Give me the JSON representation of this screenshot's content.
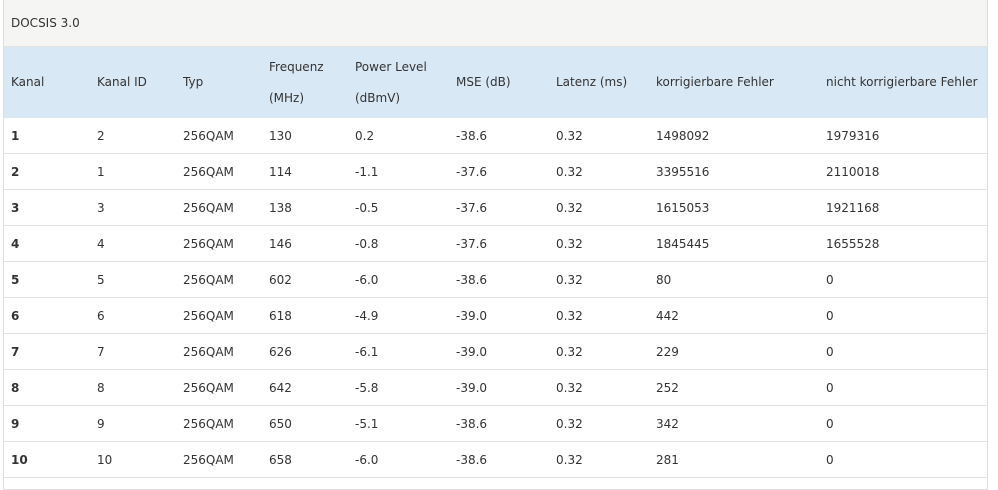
{
  "header": {
    "title": "DOCSIS 3.0"
  },
  "table": {
    "columns": [
      "Kanal",
      "Kanal ID",
      "Typ",
      "Frequenz (MHz)",
      "Power Level (dBmV)",
      "MSE (dB)",
      "Latenz (ms)",
      "korrigierbare Fehler",
      "nicht korrigierbare Fehler"
    ],
    "rows": [
      [
        "1",
        "2",
        "256QAM",
        "130",
        "0.2",
        "-38.6",
        "0.32",
        "1498092",
        "1979316"
      ],
      [
        "2",
        "1",
        "256QAM",
        "114",
        "-1.1",
        "-37.6",
        "0.32",
        "3395516",
        "2110018"
      ],
      [
        "3",
        "3",
        "256QAM",
        "138",
        "-0.5",
        "-37.6",
        "0.32",
        "1615053",
        "1921168"
      ],
      [
        "4",
        "4",
        "256QAM",
        "146",
        "-0.8",
        "-37.6",
        "0.32",
        "1845445",
        "1655528"
      ],
      [
        "5",
        "5",
        "256QAM",
        "602",
        "-6.0",
        "-38.6",
        "0.32",
        "80",
        "0"
      ],
      [
        "6",
        "6",
        "256QAM",
        "618",
        "-4.9",
        "-39.0",
        "0.32",
        "442",
        "0"
      ],
      [
        "7",
        "7",
        "256QAM",
        "626",
        "-6.1",
        "-39.0",
        "0.32",
        "229",
        "0"
      ],
      [
        "8",
        "8",
        "256QAM",
        "642",
        "-5.8",
        "-39.0",
        "0.32",
        "252",
        "0"
      ],
      [
        "9",
        "9",
        "256QAM",
        "650",
        "-5.1",
        "-38.6",
        "0.32",
        "342",
        "0"
      ],
      [
        "10",
        "10",
        "256QAM",
        "658",
        "-6.0",
        "-38.6",
        "0.32",
        "281",
        "0"
      ]
    ]
  }
}
